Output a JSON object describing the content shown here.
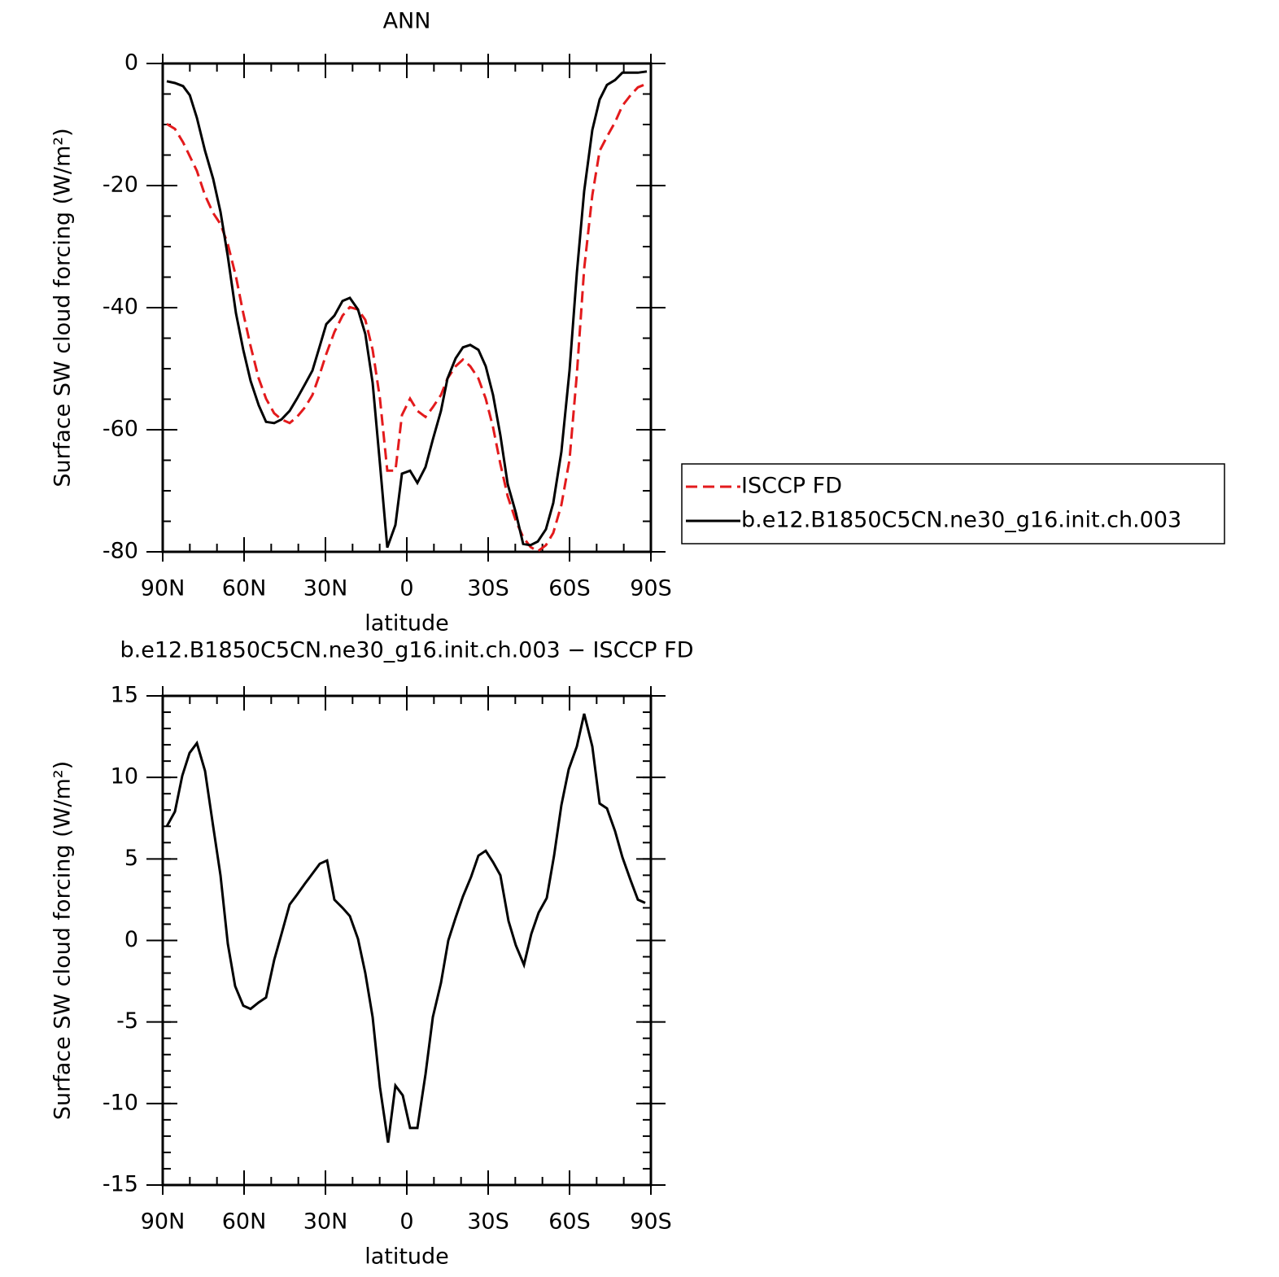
{
  "chart_data": [
    {
      "type": "line",
      "title": "ANN",
      "xlabel": "latitude",
      "ylabel": "Surface SW cloud forcing (W/m²)",
      "x": [
        88.5,
        85.5,
        82.5,
        80,
        77.4,
        74.4,
        71.4,
        68.7,
        66,
        63,
        60.3,
        57.6,
        54.6,
        51.9,
        48.9,
        46.2,
        43.2,
        40.5,
        37.5,
        34.8,
        32.1,
        29.7,
        26.7,
        23.7,
        21,
        18,
        15.3,
        12.6,
        9.9,
        7.2,
        4.2,
        1.8,
        -1.2,
        -3.9,
        -6.9,
        -9.6,
        -12.6,
        -15,
        -18,
        -20.7,
        -23.4,
        -26.4,
        -29.1,
        -31.8,
        -34.5,
        -37.2,
        -40.2,
        -42.9,
        -45.6,
        -48.3,
        -51.3,
        -54,
        -57,
        -60,
        -62.7,
        -65.4,
        -68.4,
        -71.1,
        -73.8,
        -76.8,
        -79.5,
        -82.5,
        -85.2,
        -88.5
      ],
      "series": [
        {
          "name": "ISCCP FD",
          "color": "#e31a1c",
          "line_style": "dashed",
          "values": [
            -9.9,
            -10.7,
            -12.9,
            -15.2,
            -17.6,
            -21.6,
            -24.5,
            -26.3,
            -29.6,
            -34.9,
            -40.9,
            -46.3,
            -51.6,
            -54.9,
            -57.3,
            -58.3,
            -58.9,
            -57.9,
            -56.3,
            -54.3,
            -50.9,
            -47.6,
            -44,
            -41.3,
            -39.9,
            -40.3,
            -42,
            -46.9,
            -54.9,
            -66.7,
            -66.7,
            -57.6,
            -54.9,
            -56.9,
            -57.9,
            -56.3,
            -54.3,
            -51.6,
            -49.6,
            -48.5,
            -49.6,
            -51.6,
            -54.9,
            -59.6,
            -65.6,
            -70.9,
            -74.9,
            -77.6,
            -79.2,
            -79.9,
            -78.9,
            -76.9,
            -72.3,
            -64.9,
            -50.9,
            -33.6,
            -21.6,
            -14.3,
            -12,
            -9.6,
            -6.9,
            -5.2,
            -3.9,
            -3.3
          ]
        },
        {
          "name": "b.e12.B1850C5CN.ne30_g16.init.ch.003",
          "color": "#000000",
          "line_style": "solid",
          "values": [
            -2.9,
            -3.2,
            -3.7,
            -5.2,
            -8.9,
            -14.3,
            -18.9,
            -24.3,
            -31.6,
            -40.9,
            -46.9,
            -52,
            -56,
            -58.7,
            -58.9,
            -58.3,
            -56.9,
            -54.9,
            -52.5,
            -50.3,
            -46.3,
            -42.7,
            -41.3,
            -38.9,
            -38.4,
            -40.3,
            -44.3,
            -52.3,
            -65.6,
            -79.3,
            -75.6,
            -67.2,
            -66.7,
            -68.7,
            -66.1,
            -61.6,
            -56.9,
            -51.6,
            -48.3,
            -46.5,
            -46.1,
            -46.9,
            -49.6,
            -54.3,
            -60.9,
            -68.9,
            -73.6,
            -78.7,
            -78.9,
            -78.3,
            -76.3,
            -72,
            -63.6,
            -50.3,
            -34.3,
            -20.9,
            -10.9,
            -5.9,
            -3.5,
            -2.7,
            -1.5,
            -1.5,
            -1.5,
            -1.3
          ]
        }
      ],
      "xlim": [
        90,
        -90
      ],
      "xticks": [
        {
          "value": 90,
          "label": "90N"
        },
        {
          "value": 60,
          "label": "60N"
        },
        {
          "value": 30,
          "label": "30N"
        },
        0,
        {
          "value": -30,
          "label": "30S"
        },
        {
          "value": -60,
          "label": "60S"
        },
        {
          "value": -90,
          "label": "90S"
        }
      ],
      "xminor": 10,
      "ylim": [
        -80,
        0
      ],
      "yticks": [
        0,
        -20,
        -40,
        -60,
        -80
      ],
      "yminor": 5,
      "legend": "right"
    },
    {
      "type": "line",
      "title": "b.e12.B1850C5CN.ne30_g16.init.ch.003 − ISCCP FD",
      "xlabel": "latitude",
      "ylabel": "Surface SW cloud forcing (W/m²)",
      "x": [
        88.5,
        85.5,
        82.8,
        80.1,
        77.4,
        74.4,
        71.4,
        68.7,
        66,
        63.3,
        60.3,
        57.6,
        54.6,
        51.9,
        48.9,
        46.2,
        43.2,
        40.5,
        37.5,
        34.8,
        32.1,
        29.4,
        26.7,
        23.7,
        21,
        18,
        15.3,
        12.6,
        9.9,
        6.9,
        4.2,
        1.5,
        -1.2,
        -3.9,
        -6.9,
        -9.6,
        -12.6,
        -15.3,
        -18,
        -20.7,
        -23.7,
        -26.4,
        -29.1,
        -31.8,
        -34.5,
        -37.5,
        -40.2,
        -43.2,
        -45.9,
        -48.6,
        -51.6,
        -54.3,
        -57,
        -59.7,
        -62.7,
        -65.4,
        -68.4,
        -71.1,
        -73.8,
        -76.8,
        -79.5,
        -82.5,
        -85.2,
        -87.9
      ],
      "series": [
        {
          "color": "#000000",
          "line_style": "solid",
          "values": [
            7.0,
            7.9,
            10.1,
            11.5,
            12.1,
            10.4,
            7.0,
            4.0,
            -0.2,
            -2.8,
            -4.0,
            -4.2,
            -3.8,
            -3.5,
            -1.2,
            0.4,
            2.2,
            2.8,
            3.5,
            4.1,
            4.7,
            4.9,
            2.5,
            2.0,
            1.5,
            0.1,
            -2.0,
            -4.7,
            -9.0,
            -12.4,
            -8.9,
            -9.5,
            -11.5,
            -11.5,
            -8.2,
            -4.7,
            -2.6,
            0,
            1.4,
            2.7,
            3.9,
            5.2,
            5.5,
            4.8,
            4.0,
            1.2,
            -0.3,
            -1.5,
            0.4,
            1.7,
            2.6,
            5.2,
            8.3,
            10.5,
            11.9,
            13.9,
            11.9,
            8.4,
            8.1,
            6.7,
            5.1,
            3.7,
            2.5,
            2.3
          ]
        }
      ],
      "xlim": [
        90,
        -90
      ],
      "xticks": [
        {
          "value": 90,
          "label": "90N"
        },
        {
          "value": 60,
          "label": "60N"
        },
        {
          "value": 30,
          "label": "30N"
        },
        0,
        {
          "value": -30,
          "label": "30S"
        },
        {
          "value": -60,
          "label": "60S"
        },
        {
          "value": -90,
          "label": "90S"
        }
      ],
      "xminor": 10,
      "ylim": [
        -15,
        15
      ],
      "yticks": [
        15,
        10,
        5,
        0,
        -5,
        -10,
        -15
      ],
      "yminor": 1
    }
  ]
}
